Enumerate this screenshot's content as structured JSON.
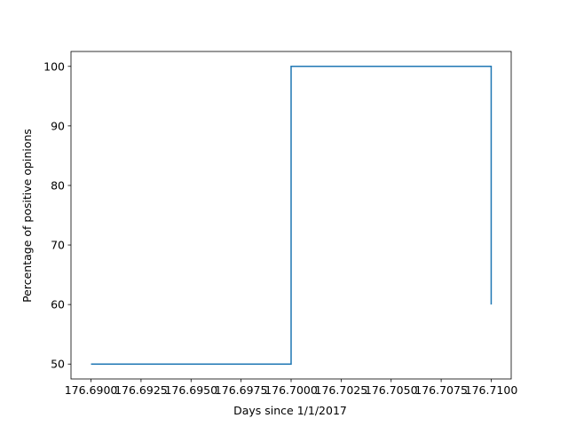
{
  "chart_data": {
    "type": "line",
    "drawstyle": "steps-post",
    "xlabel": "Days since 1/1/2017",
    "ylabel": "Percentage of positive opinions",
    "xlim": [
      176.689,
      176.711
    ],
    "ylim": [
      47.5,
      102.5
    ],
    "x_ticks": [
      176.69,
      176.6925,
      176.695,
      176.6975,
      176.7,
      176.7025,
      176.705,
      176.7075,
      176.71
    ],
    "x_tick_labels": [
      "176.6900",
      "176.6925",
      "176.6950",
      "176.6975",
      "176.7000",
      "176.7025",
      "176.7050",
      "176.7075",
      "176.7100"
    ],
    "y_ticks": [
      50,
      60,
      70,
      80,
      90,
      100
    ],
    "y_tick_labels": [
      "50",
      "60",
      "70",
      "80",
      "90",
      "100"
    ],
    "grid": false,
    "series": [
      {
        "color": "#1f77b4",
        "x": [
          176.69,
          176.7,
          176.71,
          176.71
        ],
        "y": [
          50,
          100,
          100,
          60
        ]
      }
    ]
  }
}
